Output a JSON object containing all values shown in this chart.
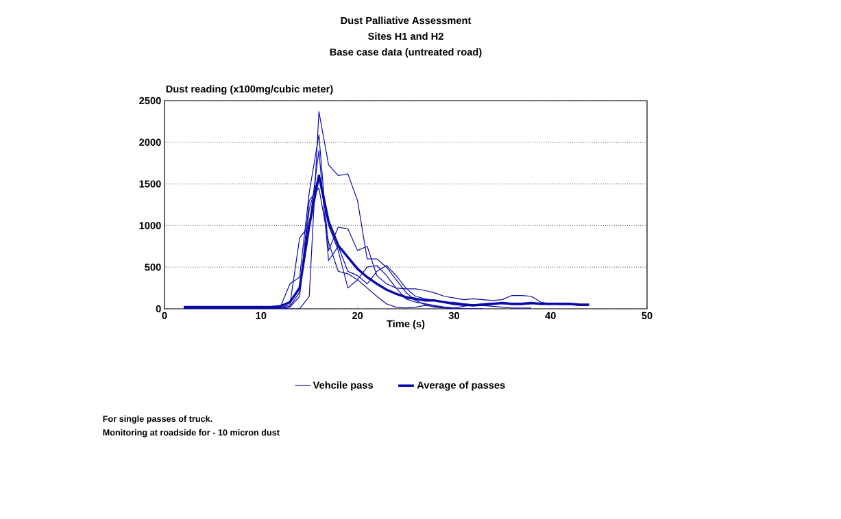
{
  "chart_data": {
    "type": "line",
    "title": "Dust Palliative Assessment",
    "subtitle": "Sites H1 and H2",
    "annotations": [
      "Base case data (untreated road)",
      "For single passes of truck.",
      "Monitoring at roadside for - 10 micron dust"
    ],
    "xlabel": "Time (s)",
    "ylabel": "Dust reading (x100mg/cubic meter)",
    "x": [
      2,
      3,
      4,
      5,
      6,
      7,
      8,
      9,
      10,
      11,
      12,
      13,
      14,
      15,
      16,
      17,
      18,
      19,
      20,
      21,
      22,
      23,
      24,
      25,
      26,
      27,
      28,
      29,
      30,
      31,
      32,
      33,
      34,
      35,
      36,
      37,
      38,
      39,
      40,
      41,
      42,
      43,
      44
    ],
    "series": [
      {
        "name": "Vehcile pass",
        "color": "#0a0aa8",
        "values": [
          10,
          10,
          10,
          10,
          10,
          10,
          10,
          10,
          10,
          10,
          10,
          0,
          0,
          150,
          2370,
          1730,
          1600,
          1620,
          1300,
          600,
          600,
          500,
          350,
          200,
          100,
          50,
          20,
          10,
          0,
          0,
          0,
          0,
          null,
          null,
          null,
          null,
          null,
          null,
          null,
          null,
          null,
          null,
          null
        ]
      },
      {
        "color": "#0a0aa8",
        "values": [
          10,
          30,
          10,
          10,
          10,
          20,
          10,
          10,
          10,
          10,
          20,
          300,
          380,
          1400,
          2090,
          700,
          980,
          960,
          700,
          750,
          400,
          300,
          250,
          240,
          240,
          220,
          190,
          150,
          130,
          110,
          120,
          110,
          100,
          110,
          160,
          160,
          150,
          80,
          60,
          50,
          50,
          40,
          40
        ]
      },
      {
        "color": "#0a0aa8",
        "values": [
          10,
          10,
          10,
          10,
          10,
          10,
          10,
          10,
          10,
          10,
          10,
          50,
          850,
          1000,
          1900,
          580,
          750,
          450,
          400,
          300,
          450,
          520,
          400,
          250,
          150,
          120,
          100,
          80,
          80,
          60,
          50,
          40,
          30,
          20,
          10,
          10,
          10,
          null,
          null,
          null,
          null,
          null,
          null
        ]
      },
      {
        "color": "#0a0aa8",
        "values": [
          10,
          10,
          10,
          10,
          10,
          10,
          10,
          10,
          10,
          10,
          10,
          30,
          200,
          1300,
          1450,
          800,
          450,
          420,
          350,
          250,
          150,
          60,
          20,
          10,
          20,
          40,
          30,
          20,
          10,
          30,
          50,
          60,
          70,
          60,
          50,
          50,
          60,
          60,
          50,
          null,
          null,
          null,
          null
        ]
      },
      {
        "color": "#0a0aa8",
        "values": [
          10,
          10,
          10,
          10,
          10,
          10,
          10,
          10,
          10,
          10,
          10,
          20,
          150,
          1200,
          1600,
          1000,
          700,
          250,
          350,
          500,
          520,
          400,
          250,
          120,
          80,
          60,
          40,
          20,
          10,
          0,
          0,
          0,
          null,
          null,
          null,
          null,
          null,
          null,
          null,
          null,
          null,
          null,
          null
        ]
      },
      {
        "name": "Average of passes",
        "color": "#0a0aa8",
        "values": [
          20,
          20,
          20,
          20,
          20,
          20,
          20,
          20,
          20,
          20,
          30,
          80,
          250,
          1000,
          1600,
          1050,
          760,
          620,
          480,
          380,
          300,
          230,
          180,
          140,
          120,
          100,
          100,
          80,
          60,
          50,
          40,
          50,
          60,
          70,
          60,
          60,
          70,
          60,
          60,
          60,
          60,
          50,
          50
        ]
      }
    ],
    "xlim": [
      0,
      50
    ],
    "xticks": [
      0,
      10,
      20,
      30,
      40,
      50
    ],
    "ylim": [
      0,
      2500
    ],
    "yticks": [
      0,
      500,
      1000,
      1500,
      2000,
      2500
    ],
    "grid": "y",
    "legend": "bottom",
    "marker": "none",
    "line_style": "solid"
  }
}
